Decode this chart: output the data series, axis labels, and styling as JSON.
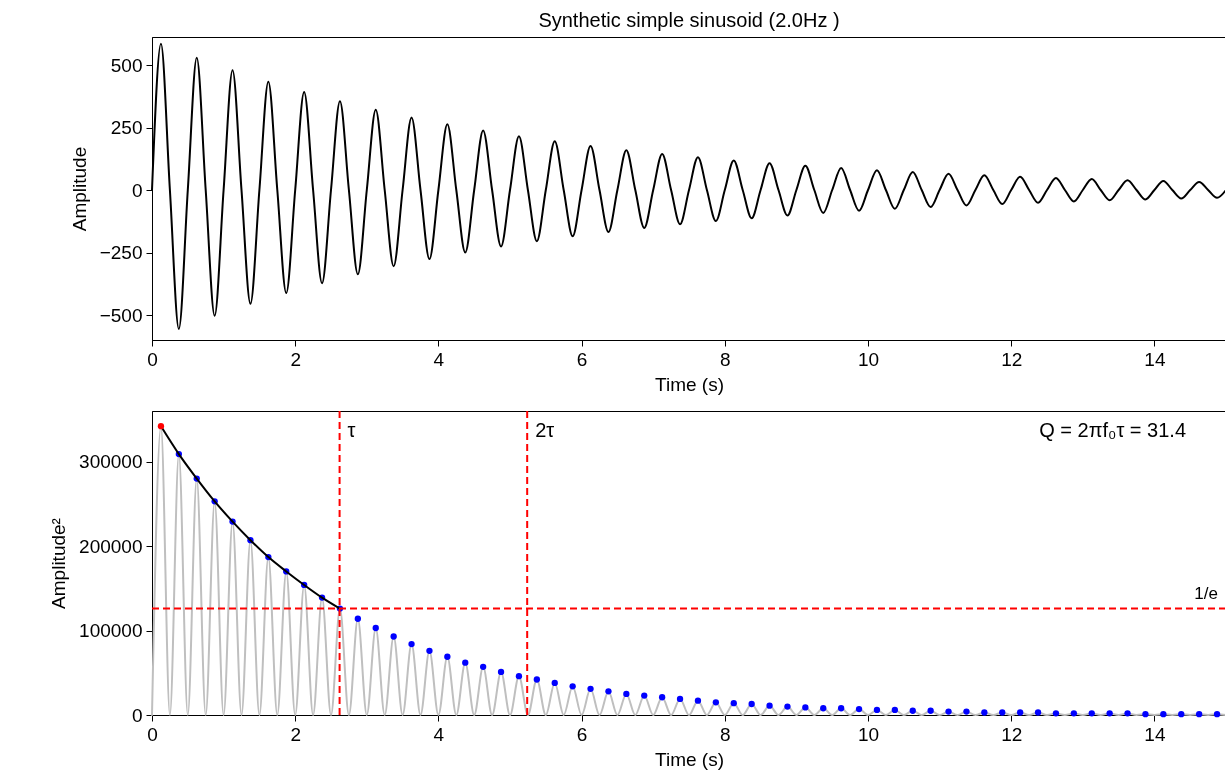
{
  "chart_data": [
    {
      "type": "line",
      "title": "Synthetic simple sinusoid (2.0Hz )",
      "xlabel": "Time (s)",
      "ylabel": "Amplitude",
      "x": [
        0,
        0.125,
        0.25,
        0.375,
        0.5,
        0.625,
        0.75,
        0.875,
        1,
        1.125,
        1.25,
        1.375,
        1.5,
        1.625,
        1.75,
        1.875,
        2,
        2.125,
        2.25,
        2.375,
        2.5,
        2.625,
        2.75,
        2.875,
        3,
        3.125,
        3.25,
        3.375,
        3.5,
        3.625,
        3.75,
        3.875,
        4,
        4.125,
        4.25,
        4.375,
        4.5,
        4.625,
        4.75,
        4.875,
        5,
        5.125,
        5.25,
        5.375,
        5.5,
        5.625,
        5.75,
        5.875,
        6,
        6.125,
        6.25,
        6.375,
        6.5,
        6.625,
        6.75,
        6.875,
        7,
        7.125,
        7.25,
        7.375,
        7.5,
        7.625,
        7.75,
        7.875,
        8,
        8.125,
        8.25,
        8.375,
        8.5,
        8.625,
        8.75,
        8.875,
        9,
        9.125,
        9.25,
        9.375,
        9.5,
        9.625,
        9.75,
        9.875,
        10,
        10.125,
        10.25,
        10.375,
        10.5,
        10.625,
        10.75,
        10.875,
        11,
        11.125,
        11.25,
        11.375,
        11.5,
        11.625,
        11.75,
        11.875,
        12,
        12.125,
        12.25,
        12.375,
        12.5,
        12.625,
        12.75,
        12.875,
        13,
        13.125,
        13.25,
        13.375,
        13.5,
        13.625,
        13.75,
        13.875,
        14,
        14.125,
        14.25,
        14.375,
        14.5,
        14.625,
        14.75,
        14.875,
        15
      ],
      "series": [
        {
          "color": "#000000",
          "values": [
            0,
            585,
            0,
            -556,
            0,
            529,
            0,
            -503,
            0,
            479,
            0,
            -455,
            0,
            433,
            0,
            -412,
            0,
            392,
            0,
            -373,
            0,
            355,
            0,
            -337,
            0,
            321,
            0,
            -305,
            0,
            290,
            0,
            -276,
            0,
            263,
            0,
            -250,
            0,
            238,
            0,
            -226,
            0,
            215,
            0,
            -205,
            0,
            195,
            0,
            -185,
            0,
            176,
            0,
            -168,
            0,
            159,
            0,
            -152,
            0,
            144,
            0,
            -137,
            0,
            131,
            0,
            -124,
            0,
            118,
            0,
            -113,
            0,
            107,
            0,
            -102,
            0,
            97,
            0,
            -92,
            0,
            88,
            0,
            -83,
            0,
            79,
            0,
            -75,
            0,
            72,
            0,
            -68,
            0,
            65,
            0,
            -62,
            0,
            59,
            0,
            -56,
            0,
            53,
            0,
            -51,
            0,
            48,
            0,
            -46,
            0,
            44,
            0,
            -41,
            0,
            39,
            0,
            -38,
            0,
            36,
            0,
            -34,
            0,
            32,
            0,
            -31,
            0
          ]
        }
      ],
      "xlim": [
        0,
        15
      ],
      "xticks": [
        0,
        2,
        4,
        6,
        8,
        10,
        12,
        14
      ],
      "ylim": [
        -600,
        612
      ],
      "yticks": [
        -500,
        -250,
        0,
        250,
        500
      ]
    },
    {
      "type": "line",
      "xlabel": "Time (s)",
      "ylabel": "Amplitude²",
      "series": [
        {
          "color": "#bfbfbf",
          "x": [
            0,
            0.125,
            0.25,
            0.375,
            0.5,
            0.625,
            0.75,
            0.875,
            1,
            1.125,
            1.25,
            1.375,
            1.5,
            1.625,
            1.75,
            1.875,
            2,
            2.125,
            2.25,
            2.375,
            2.5,
            2.625,
            2.75,
            2.875,
            3,
            3.125,
            3.25,
            3.375,
            3.5,
            3.625,
            3.75,
            3.875,
            4,
            4.125,
            4.25,
            4.375,
            4.5,
            4.625,
            4.75,
            4.875,
            5,
            5.125,
            5.25,
            5.375,
            5.5,
            5.625,
            5.75,
            5.875,
            6,
            6.125,
            6.25,
            6.375,
            6.5,
            6.625,
            6.75,
            6.875,
            7,
            7.125,
            7.25,
            7.375,
            7.5,
            7.625,
            7.75,
            7.875,
            8,
            8.125,
            8.25,
            8.375,
            8.5,
            8.625,
            8.75,
            8.875,
            9,
            9.125,
            9.25,
            9.375,
            9.5,
            9.625,
            9.75,
            9.875,
            10,
            10.125,
            10.25,
            10.375,
            10.5,
            10.625,
            10.75,
            10.875,
            11,
            11.125,
            11.25,
            11.375,
            11.5,
            11.625,
            11.75,
            11.875,
            12,
            12.125,
            12.25,
            12.375,
            12.5,
            12.625,
            12.75,
            12.875,
            13,
            13.125,
            13.25,
            13.375,
            13.5,
            13.625,
            13.75,
            13.875,
            14,
            14.125,
            14.25,
            14.375,
            14.5,
            14.625,
            14.75,
            14.875,
            15
          ],
          "values": [
            0,
            342000,
            0,
            309000,
            0,
            280000,
            0,
            253000,
            0,
            229000,
            0,
            207000,
            0,
            187000,
            0,
            170000,
            0,
            154000,
            0,
            139000,
            0,
            126000,
            0,
            114000,
            0,
            103000,
            0,
            93000,
            0,
            84000,
            0,
            76000,
            0,
            69000,
            0,
            62000,
            0,
            57000,
            0,
            51000,
            0,
            46000,
            0,
            42000,
            0,
            38000,
            0,
            34000,
            0,
            31000,
            0,
            28000,
            0,
            25000,
            0,
            23000,
            0,
            21000,
            0,
            19000,
            0,
            17000,
            0,
            15000,
            0,
            14000,
            0,
            13000,
            0,
            11000,
            0,
            10000,
            0,
            9000,
            0,
            8000,
            0,
            8000,
            0,
            7000,
            0,
            6000,
            0,
            6000,
            0,
            5000,
            0,
            5000,
            0,
            4000,
            0,
            4000,
            0,
            3000,
            0,
            3000,
            0,
            3000,
            0,
            3000,
            0,
            2000,
            0,
            2000,
            0,
            2000,
            0,
            2000,
            0,
            2000,
            0,
            1000,
            0,
            1000,
            0,
            1000,
            0,
            1000,
            0,
            1000,
            0
          ]
        },
        {
          "type": "scatter",
          "color": "#0000ff",
          "x": [
            0.375,
            0.625,
            0.875,
            1.125,
            1.375,
            1.625,
            1.875,
            2.125,
            2.375,
            2.625,
            2.875,
            3.125,
            3.375,
            3.625,
            3.875,
            4.125,
            4.375,
            4.625,
            4.875,
            5.125,
            5.375,
            5.625,
            5.875,
            6.125,
            6.375,
            6.625,
            6.875,
            7.125,
            7.375,
            7.625,
            7.875,
            8.125,
            8.375,
            8.625,
            8.875,
            9.125,
            9.375,
            9.625,
            9.875,
            10.125,
            10.375,
            10.625,
            10.875,
            11.125,
            11.375,
            11.625,
            11.875,
            12.125,
            12.375,
            12.625,
            12.875,
            13.125,
            13.375,
            13.625,
            13.875,
            14.125,
            14.375,
            14.625,
            14.875
          ],
          "values": [
            309000,
            280000,
            253000,
            229000,
            207000,
            187000,
            170000,
            154000,
            139000,
            126000,
            114000,
            103000,
            93000,
            84000,
            76000,
            69000,
            62000,
            57000,
            51000,
            46000,
            42000,
            38000,
            34000,
            31000,
            28000,
            25000,
            23000,
            21000,
            19000,
            17000,
            15000,
            14000,
            13000,
            11000,
            10000,
            9000,
            8000,
            8000,
            7000,
            6000,
            6000,
            5000,
            5000,
            4000,
            4000,
            3000,
            3000,
            3000,
            3000,
            2000,
            2000,
            2000,
            2000,
            2000,
            1000,
            1000,
            1000,
            1000,
            1000
          ]
        },
        {
          "type": "line",
          "color": "#000000",
          "x": [
            0.125,
            0.375,
            0.625,
            0.875,
            1.125,
            1.375,
            1.625,
            1.875,
            2.125,
            2.375,
            2.625
          ],
          "values": [
            342000,
            309000,
            280000,
            253000,
            229000,
            207000,
            187000,
            170000,
            154000,
            139000,
            126000
          ]
        },
        {
          "type": "scatter",
          "color": "#ff0000",
          "x": [
            0.125
          ],
          "values": [
            342000
          ]
        }
      ],
      "xlim": [
        0,
        15
      ],
      "xticks": [
        0,
        2,
        4,
        6,
        8,
        10,
        12,
        14
      ],
      "ylim": [
        0,
        360000
      ],
      "yticks": [
        0,
        100000,
        200000,
        300000
      ],
      "ref_lines": [
        {
          "axis": "x",
          "value": 2.62,
          "label": "τ",
          "color": "#ff0000",
          "line_style": "dashed"
        },
        {
          "axis": "x",
          "value": 5.24,
          "label": "2τ",
          "color": "#ff0000",
          "line_style": "dashed"
        },
        {
          "axis": "y",
          "value": 126000,
          "label": "1/e",
          "color": "#ff0000",
          "line_style": "dashed"
        }
      ],
      "annotations": [
        "Q = 2πf₀τ = 31.4"
      ]
    }
  ]
}
